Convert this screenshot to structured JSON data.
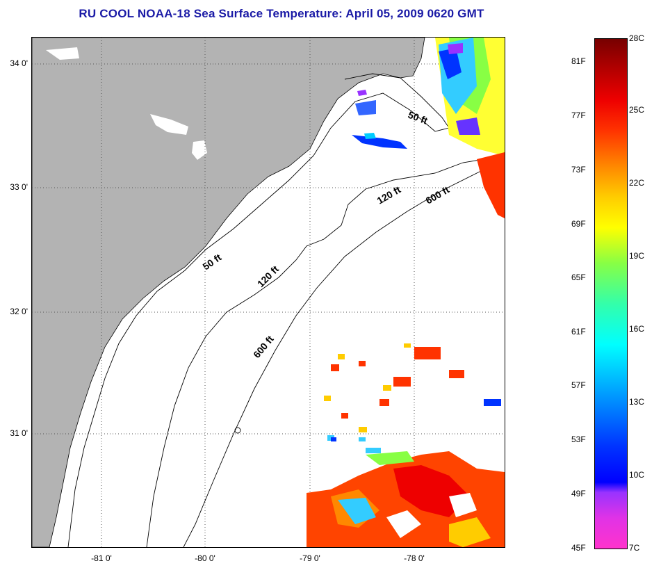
{
  "title": "RU COOL  NOAA-18  Sea Surface Temperature:  April 05, 2009 0620 GMT",
  "map": {
    "lat_labels": [
      "34 0'",
      "33 0'",
      "32 0'",
      "31 0'"
    ],
    "lon_labels": [
      "-81 0'",
      "-80 0'",
      "-79 0'",
      "-78 0'"
    ],
    "contour_labels": {
      "ft50_north": "50 ft",
      "ft120_north": "120 ft",
      "ft600_north": "600 ft",
      "ft50_south": "50 ft",
      "ft120_south": "120 ft",
      "ft600_south": "600 ft"
    },
    "colors": {
      "land": "#b3b3b3",
      "ocean_no_data": "#ffffff",
      "grid": "#555555",
      "contour": "#000000"
    }
  },
  "colorbar": {
    "fahrenheit_labels": [
      "81F",
      "77F",
      "73F",
      "69F",
      "65F",
      "61F",
      "57F",
      "53F",
      "49F",
      "45F"
    ],
    "celsius_labels": [
      "28C",
      "25C",
      "22C",
      "19C",
      "16C",
      "13C",
      "10C",
      "7C"
    ],
    "min_f": 45,
    "max_f": 82.4,
    "colors": [
      "#ff33cc",
      "#9933ff",
      "#0000ff",
      "#00ffff",
      "#88ff44",
      "#ffff00",
      "#ff8800",
      "#ee0000",
      "#770000"
    ]
  }
}
